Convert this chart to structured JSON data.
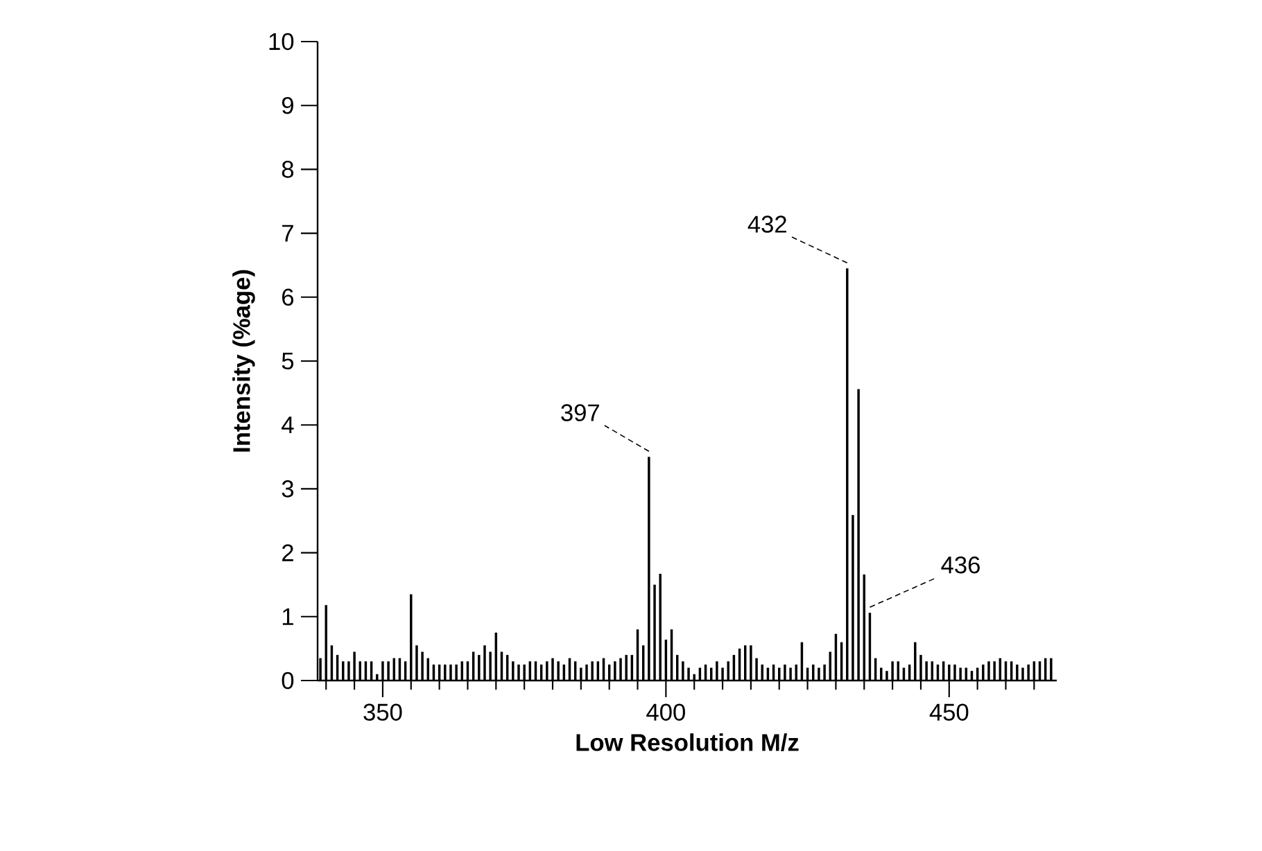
{
  "chart_data": {
    "type": "bar",
    "xlabel": "Low Resolution M/z",
    "ylabel": "Intensity (%age)",
    "x": [
      339,
      340,
      341,
      342,
      343,
      344,
      345,
      346,
      347,
      348,
      349,
      350,
      351,
      352,
      353,
      354,
      355,
      356,
      357,
      358,
      359,
      360,
      361,
      362,
      363,
      364,
      365,
      366,
      367,
      368,
      369,
      370,
      371,
      372,
      373,
      374,
      375,
      376,
      377,
      378,
      379,
      380,
      381,
      382,
      383,
      384,
      385,
      386,
      387,
      388,
      389,
      390,
      391,
      392,
      393,
      394,
      395,
      396,
      397,
      398,
      399,
      400,
      401,
      402,
      403,
      404,
      405,
      406,
      407,
      408,
      409,
      410,
      411,
      412,
      413,
      414,
      415,
      416,
      417,
      418,
      419,
      420,
      421,
      422,
      423,
      424,
      425,
      426,
      427,
      428,
      429,
      430,
      431,
      432,
      433,
      434,
      435,
      436,
      437,
      438,
      439,
      440,
      441,
      442,
      443,
      444,
      445,
      446,
      447,
      448,
      449,
      450,
      451,
      452,
      453,
      454,
      455,
      456,
      457,
      458,
      459,
      460,
      461,
      462,
      463,
      464,
      465,
      466,
      467,
      468
    ],
    "values": [
      0.35,
      1.18,
      0.55,
      0.4,
      0.3,
      0.3,
      0.45,
      0.3,
      0.3,
      0.3,
      0.1,
      0.3,
      0.3,
      0.35,
      0.35,
      0.3,
      1.35,
      0.55,
      0.45,
      0.35,
      0.25,
      0.25,
      0.25,
      0.25,
      0.25,
      0.3,
      0.3,
      0.45,
      0.4,
      0.55,
      0.45,
      0.75,
      0.45,
      0.4,
      0.3,
      0.25,
      0.25,
      0.3,
      0.3,
      0.25,
      0.3,
      0.35,
      0.3,
      0.25,
      0.35,
      0.3,
      0.2,
      0.25,
      0.3,
      0.3,
      0.35,
      0.25,
      0.3,
      0.35,
      0.4,
      0.4,
      0.8,
      0.55,
      3.5,
      1.5,
      1.67,
      0.64,
      0.8,
      0.4,
      0.3,
      0.2,
      0.1,
      0.2,
      0.25,
      0.2,
      0.3,
      0.2,
      0.3,
      0.4,
      0.5,
      0.55,
      0.55,
      0.35,
      0.25,
      0.2,
      0.25,
      0.2,
      0.25,
      0.2,
      0.25,
      0.6,
      0.2,
      0.25,
      0.2,
      0.25,
      0.45,
      0.73,
      0.6,
      6.45,
      2.59,
      4.56,
      1.66,
      1.06,
      0.35,
      0.2,
      0.15,
      0.3,
      0.3,
      0.2,
      0.25,
      0.6,
      0.4,
      0.3,
      0.3,
      0.25,
      0.3,
      0.25,
      0.25,
      0.2,
      0.2,
      0.15,
      0.2,
      0.25,
      0.3,
      0.3,
      0.35,
      0.3,
      0.3,
      0.25,
      0.2,
      0.25,
      0.3,
      0.3,
      0.35,
      0.35
    ],
    "color": "#000000",
    "xlim": [
      338.5,
      469
    ],
    "xticks": [
      {
        "value": 340,
        "label": null
      },
      {
        "value": 345,
        "label": null
      },
      350,
      {
        "value": 355,
        "label": null
      },
      {
        "value": 360,
        "label": null
      },
      {
        "value": 365,
        "label": null
      },
      {
        "value": 370,
        "label": null
      },
      {
        "value": 375,
        "label": null
      },
      {
        "value": 380,
        "label": null
      },
      {
        "value": 385,
        "label": null
      },
      {
        "value": 390,
        "label": null
      },
      {
        "value": 395,
        "label": null
      },
      400,
      {
        "value": 405,
        "label": null
      },
      {
        "value": 410,
        "label": null
      },
      {
        "value": 415,
        "label": null
      },
      {
        "value": 420,
        "label": null
      },
      {
        "value": 425,
        "label": null
      },
      {
        "value": 430,
        "label": null
      },
      {
        "value": 435,
        "label": null
      },
      {
        "value": 440,
        "label": null
      },
      {
        "value": 445,
        "label": null
      },
      450,
      {
        "value": 455,
        "label": null
      },
      {
        "value": 460,
        "label": null
      },
      {
        "value": 465,
        "label": null
      }
    ],
    "ylim": [
      0,
      10
    ],
    "yticks": [
      0,
      1,
      2,
      3,
      4,
      5,
      6,
      7,
      8,
      9,
      10
    ],
    "grid": false,
    "annotations": [
      {
        "text": "397",
        "x": 397,
        "y": 3.5
      },
      {
        "text": "432",
        "x": 432,
        "y": 6.45
      },
      {
        "text": "436",
        "x": 436,
        "y": 1.06
      }
    ]
  }
}
